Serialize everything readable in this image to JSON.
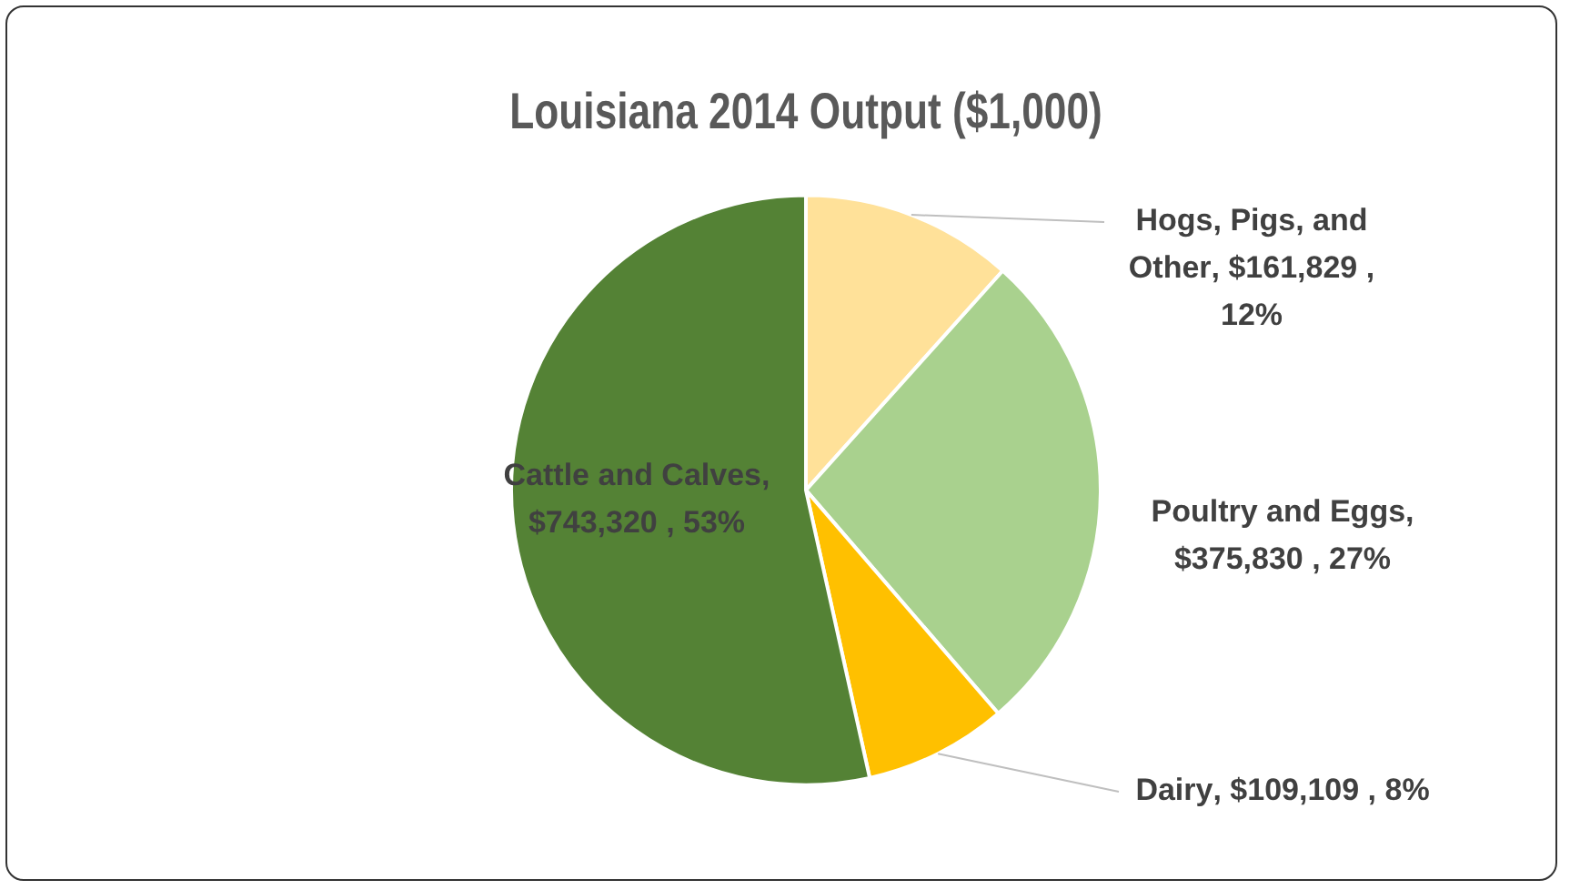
{
  "chart_data": {
    "type": "pie",
    "title": "Louisiana 2014 Output ($1,000)",
    "categories": [
      "Hogs, Pigs, and Other",
      "Poultry and Eggs",
      "Dairy",
      "Cattle and Calves"
    ],
    "values": [
      161829,
      375830,
      109109,
      743320
    ],
    "value_labels": [
      ", $161,829 , 12%",
      ", $375,830 , 27%",
      ", $109,109 , 8%",
      ", $743,320 , 53%"
    ],
    "colors": [
      "#ffe199",
      "#a9d18e",
      "#ffc000",
      "#548235"
    ],
    "legend": false
  }
}
